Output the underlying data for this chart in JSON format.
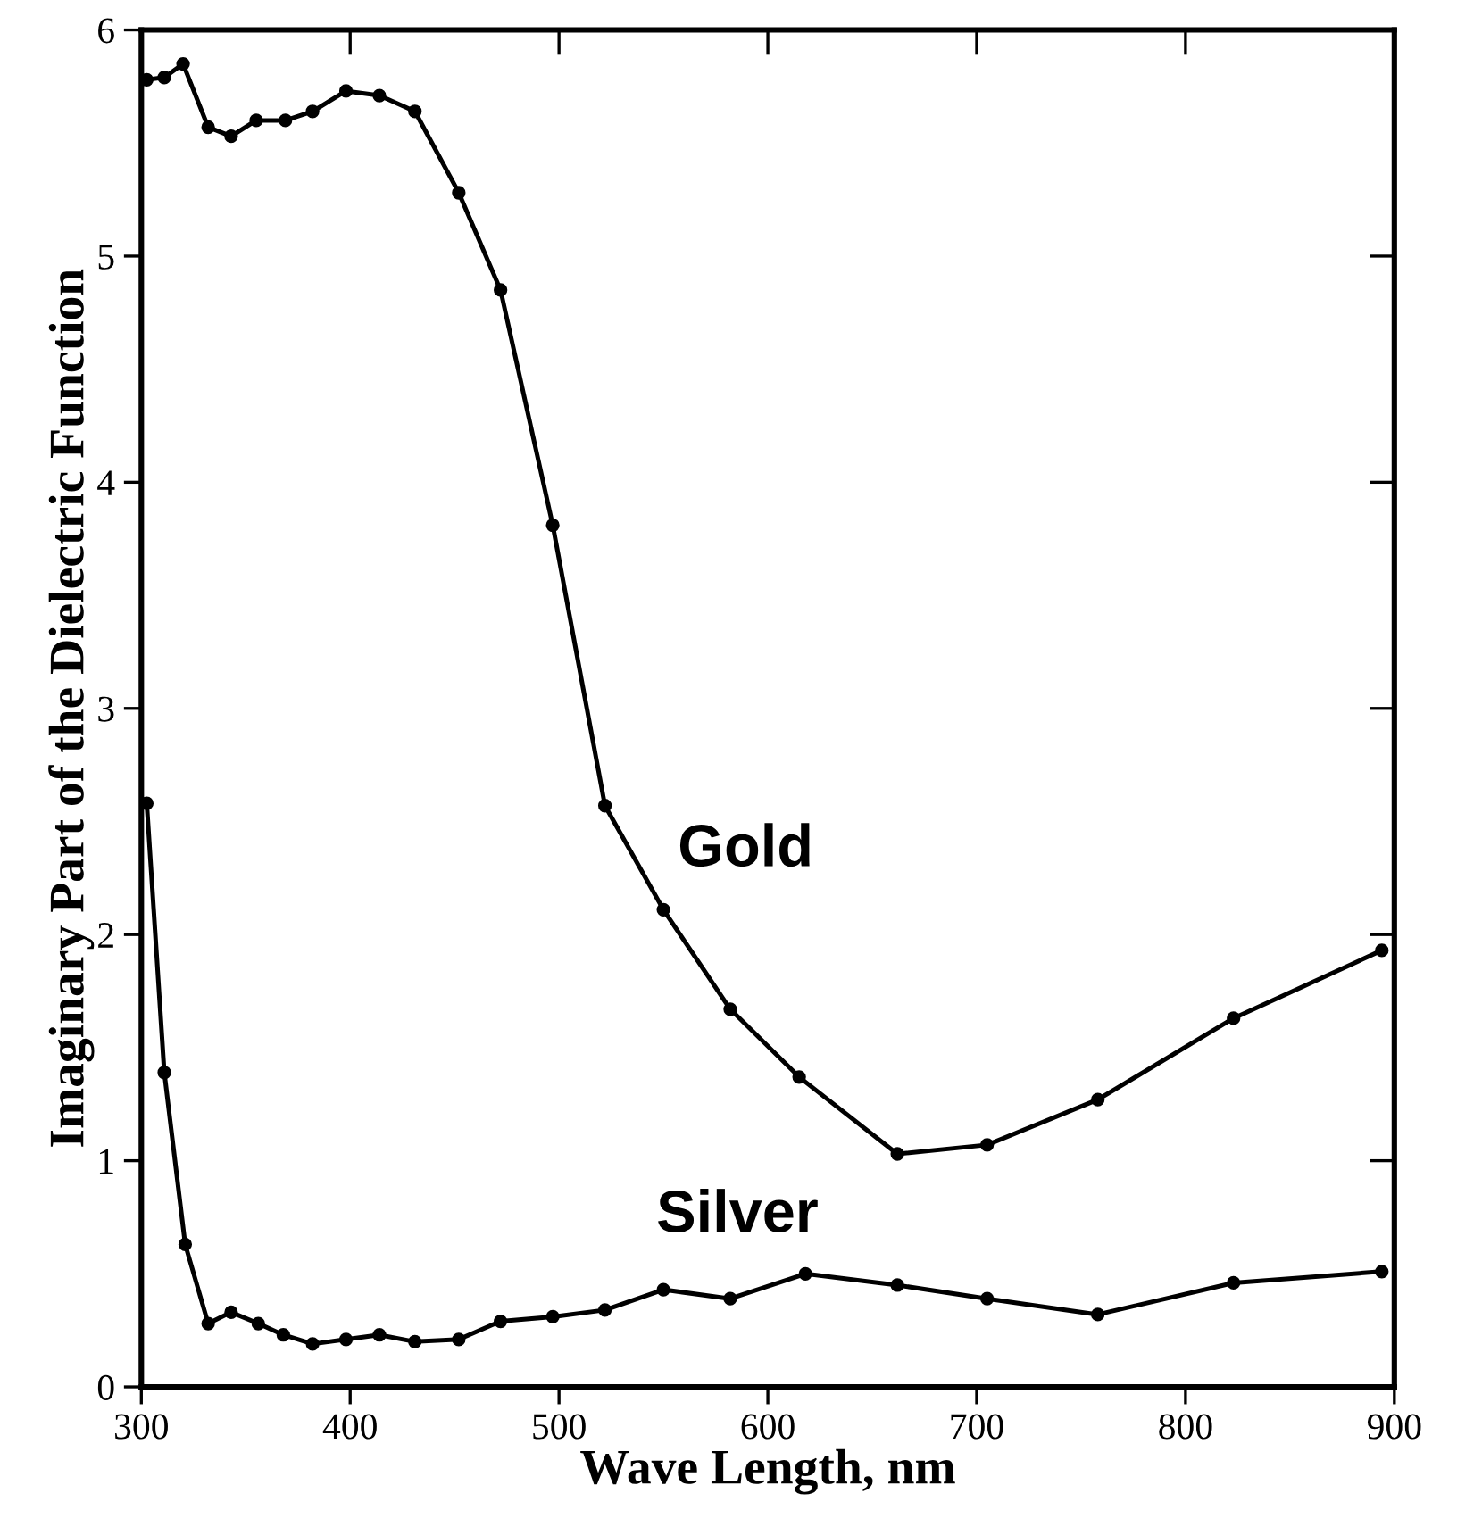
{
  "chart_data": {
    "type": "line",
    "xlabel": "Wave Length, nm",
    "ylabel": "Imaginary Part of the Dielectric Function",
    "xlim": [
      300,
      900
    ],
    "xticks": [
      300,
      400,
      500,
      600,
      700,
      800,
      900
    ],
    "ylim": [
      0,
      6
    ],
    "yticks": [
      0,
      1,
      2,
      3,
      4,
      5,
      6
    ],
    "grid": false,
    "legend": false,
    "marker": "circle",
    "line_style": "solid",
    "series": [
      {
        "name": "Gold",
        "color": "#000000",
        "x": [
          302.6,
          311,
          320,
          332,
          343,
          355,
          369,
          382,
          398,
          414,
          431,
          452,
          472,
          497,
          522,
          550,
          582,
          615,
          662,
          705,
          758,
          823,
          894
        ],
        "values": [
          5.78,
          5.79,
          5.85,
          5.57,
          5.53,
          5.6,
          5.6,
          5.64,
          5.73,
          5.71,
          5.64,
          5.28,
          4.85,
          3.81,
          2.57,
          2.11,
          1.67,
          1.37,
          1.03,
          1.07,
          1.27,
          1.63,
          1.93
        ]
      },
      {
        "name": "Silver",
        "color": "#000000",
        "x": [
          302.6,
          311,
          321,
          332,
          343,
          356,
          368,
          382,
          398,
          414,
          431,
          452,
          472,
          497,
          522,
          550,
          582,
          618,
          662,
          705,
          758,
          823,
          894
        ],
        "values": [
          2.58,
          1.39,
          0.63,
          0.28,
          0.33,
          0.28,
          0.23,
          0.19,
          0.21,
          0.23,
          0.2,
          0.21,
          0.29,
          0.31,
          0.34,
          0.43,
          0.39,
          0.5,
          0.45,
          0.39,
          0.32,
          0.46,
          0.51
        ]
      }
    ]
  }
}
